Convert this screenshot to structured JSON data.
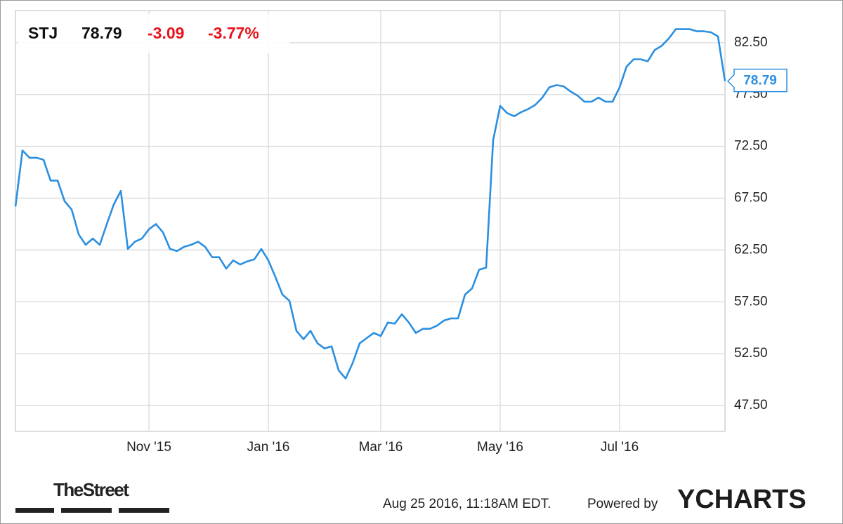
{
  "chart_data": {
    "type": "line",
    "ticker": "STJ",
    "price": "78.79",
    "change": "-3.09",
    "change_percent": "-3.77%",
    "categories": [
      null,
      null,
      null,
      null,
      null,
      null,
      null,
      null,
      null,
      null,
      null,
      null,
      null,
      null,
      null,
      null,
      null,
      null,
      null,
      "Nov '15",
      null,
      null,
      null,
      null,
      null,
      null,
      null,
      null,
      null,
      null,
      null,
      null,
      null,
      null,
      null,
      null,
      "Jan '16",
      null,
      null,
      null,
      null,
      null,
      null,
      null,
      null,
      null,
      null,
      null,
      null,
      null,
      null,
      null,
      "Mar '16",
      null,
      null,
      null,
      null,
      null,
      null,
      null,
      null,
      null,
      null,
      null,
      null,
      null,
      null,
      null,
      null,
      "May '16",
      null,
      null,
      null,
      null,
      null,
      null,
      null,
      null,
      null,
      null,
      null,
      null,
      null,
      null,
      null,
      null,
      "Jul '16",
      null,
      null,
      null,
      null,
      null,
      null,
      null,
      null,
      null,
      null,
      null,
      null,
      null,
      null,
      null
    ],
    "series": [
      {
        "name": "STJ",
        "color": "#2b8fe0",
        "values": [
          66.7,
          72.1,
          71.4,
          71.4,
          71.2,
          69.2,
          69.2,
          67.2,
          66.4,
          64.0,
          63.0,
          63.6,
          63.0,
          65.0,
          66.9,
          68.2,
          62.6,
          63.3,
          63.6,
          64.5,
          65.0,
          64.2,
          62.6,
          62.4,
          62.8,
          63.0,
          63.3,
          62.8,
          61.8,
          61.8,
          60.7,
          61.5,
          61.1,
          61.4,
          61.6,
          62.6,
          61.5,
          59.9,
          58.2,
          57.6,
          54.7,
          53.9,
          54.7,
          53.5,
          53.0,
          53.2,
          50.9,
          50.1,
          51.6,
          53.5,
          54.0,
          54.5,
          54.2,
          55.5,
          55.4,
          56.3,
          55.5,
          54.5,
          54.9,
          54.9,
          55.2,
          55.7,
          55.9,
          55.9,
          58.2,
          58.8,
          60.6,
          60.8,
          73.1,
          76.4,
          75.7,
          75.4,
          75.8,
          76.1,
          76.5,
          77.2,
          78.2,
          78.4,
          78.3,
          77.8,
          77.4,
          76.8,
          76.8,
          77.2,
          76.8,
          76.8,
          78.2,
          80.2,
          80.9,
          80.9,
          80.7,
          81.8,
          82.2,
          82.9,
          83.8,
          83.8,
          83.8,
          83.6,
          83.6,
          83.5,
          83.1,
          78.79
        ]
      }
    ],
    "ylim": [
      45.0,
      85.6
    ],
    "yticks": [
      {
        "value": 47.5,
        "label": "47.50"
      },
      {
        "value": 52.5,
        "label": "52.50"
      },
      {
        "value": 57.5,
        "label": "57.50"
      },
      {
        "value": 62.5,
        "label": "62.50"
      },
      {
        "value": 67.5,
        "label": "67.50"
      },
      {
        "value": 72.5,
        "label": "72.50"
      },
      {
        "value": 77.5,
        "label": "77.50"
      },
      {
        "value": 82.5,
        "label": "82.50"
      }
    ],
    "grid": true,
    "brand": "TheStreet",
    "timestamp": "Aug 25 2016, 11:18AM EDT.",
    "powered_by": "Powered by",
    "provider": "YCHARTS"
  }
}
